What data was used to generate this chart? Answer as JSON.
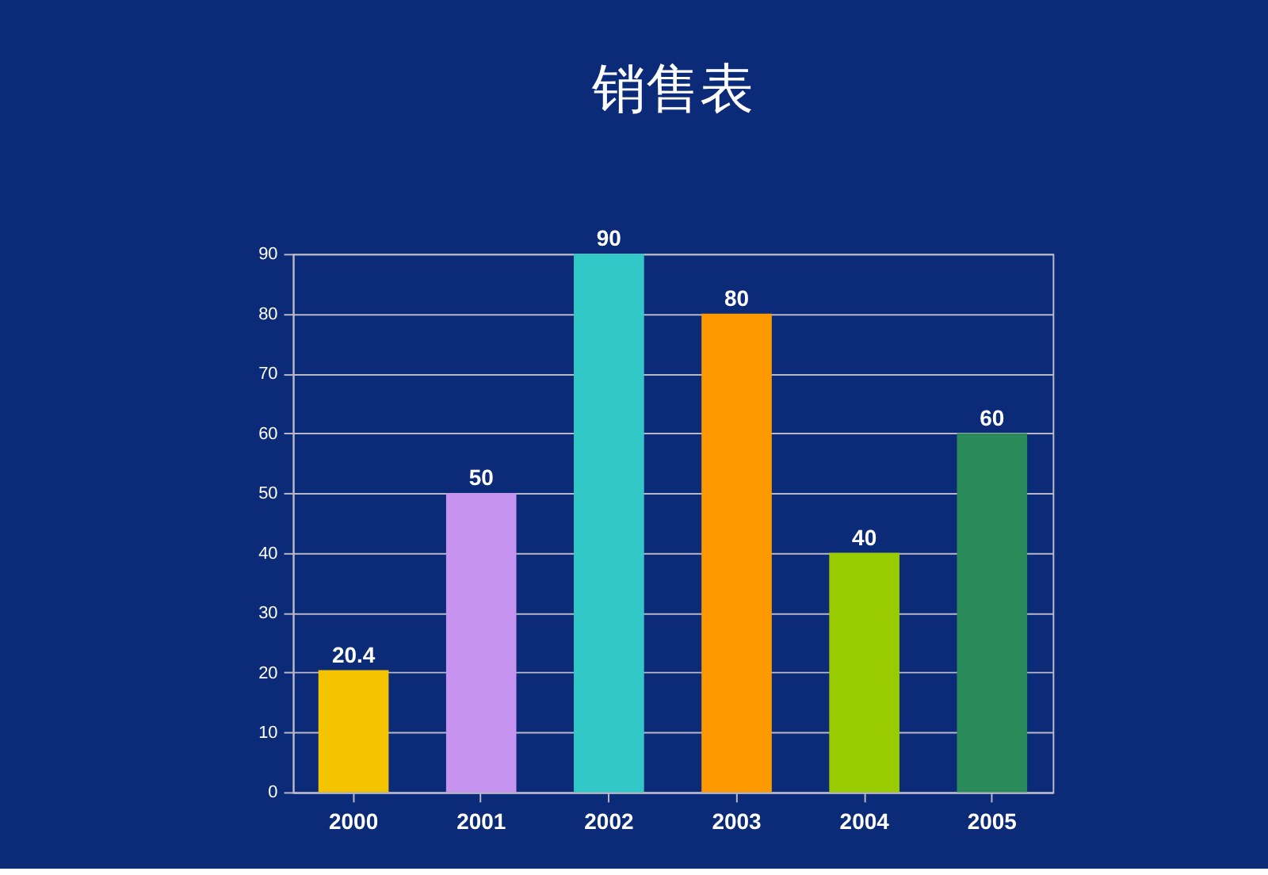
{
  "chart_data": {
    "type": "bar",
    "title": "销售表",
    "categories": [
      "2000",
      "2001",
      "2002",
      "2003",
      "2004",
      "2005"
    ],
    "values": [
      20.4,
      50,
      90,
      80,
      40,
      60
    ],
    "colors": [
      "#f5c400",
      "#c693f0",
      "#33c8c8",
      "#ff9900",
      "#99cc00",
      "#2a8a5a"
    ],
    "ylim": [
      0,
      90
    ],
    "yticks": [
      0,
      10,
      20,
      30,
      40,
      50,
      60,
      70,
      80,
      90
    ],
    "grid": "y",
    "data_labels": true
  }
}
